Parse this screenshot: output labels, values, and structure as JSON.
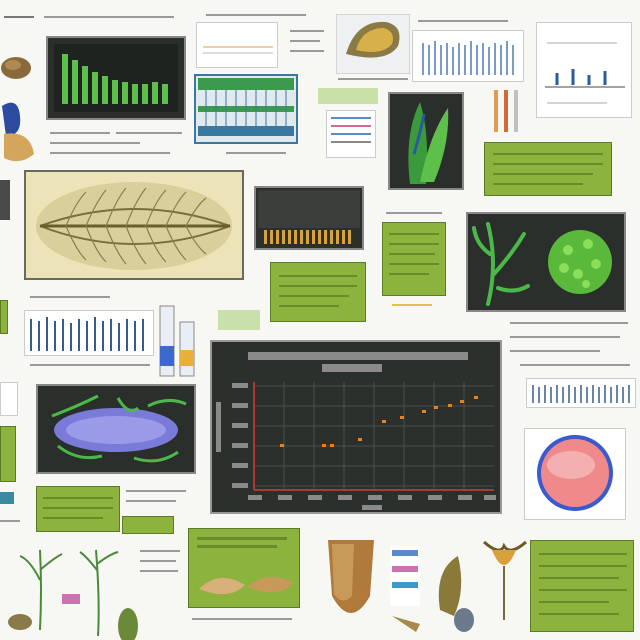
{
  "colors": {
    "background": "#f7f7f4",
    "panel_dark": "#2b2f2c",
    "panel_green": "#8db33f",
    "leaf_green": "#4db84a",
    "bar_orange": "#d08a2d",
    "axis_red": "#d83a3a",
    "point_orange": "#e8821e"
  },
  "icons": [
    "leaf-icon",
    "seed-icon",
    "petri-dish-icon",
    "plant-sprout-icon"
  ]
}
